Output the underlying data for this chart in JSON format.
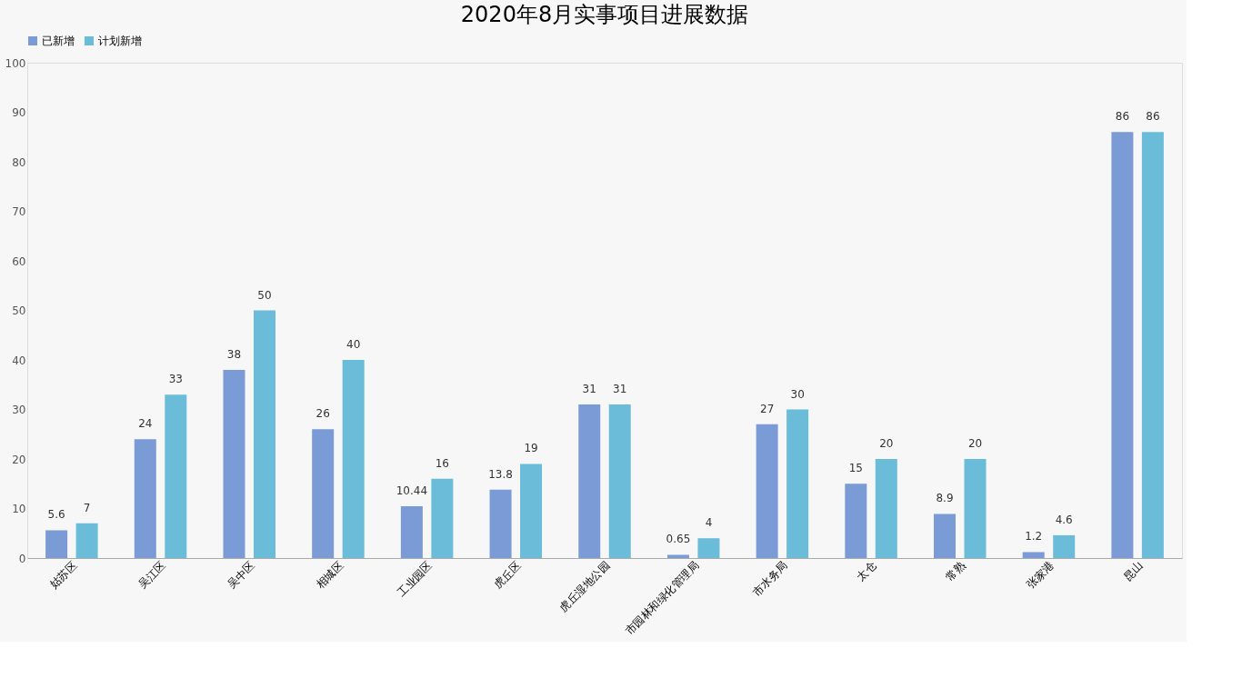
{
  "chart_data": {
    "type": "bar",
    "title": "2020年8月实事项目进展数据",
    "categories": [
      "姑苏区",
      "吴江区",
      "吴中区",
      "相城区",
      "工业园区",
      "虎丘区",
      "虎丘湿地公园",
      "市园林和绿化管理局",
      "市水务局",
      "太仓",
      "常熟",
      "张家港",
      "昆山"
    ],
    "series": [
      {
        "name": "已新增",
        "color": "#7b9bd6",
        "values": [
          5.6,
          24,
          38,
          26,
          10.44,
          13.8,
          31,
          0.65,
          27,
          15,
          8.9,
          1.2,
          86
        ]
      },
      {
        "name": "计划新增",
        "color": "#6bbcd9",
        "values": [
          7,
          33,
          50,
          40,
          16,
          19,
          31,
          4,
          30,
          20,
          20,
          4.6,
          86
        ]
      }
    ],
    "ylim": [
      0,
      100
    ],
    "yticks": [
      0,
      10,
      20,
      30,
      40,
      50,
      60,
      70,
      80,
      90,
      100
    ],
    "grid": false,
    "legend": "top",
    "data_labels": true
  }
}
